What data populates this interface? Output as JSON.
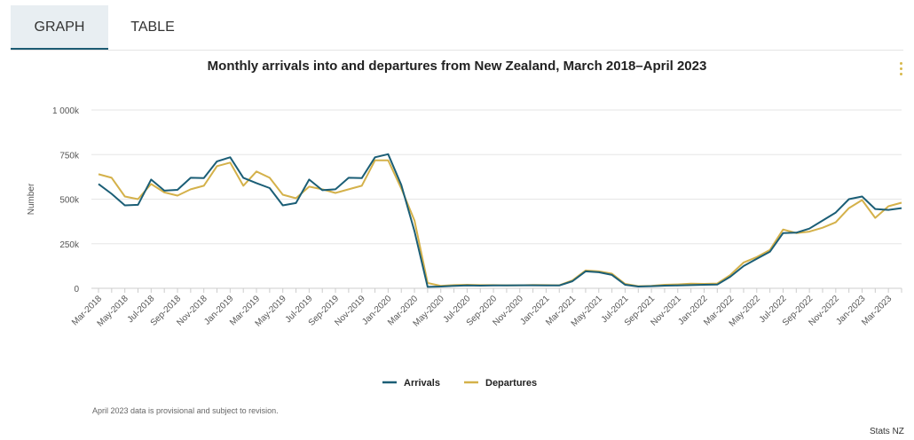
{
  "tabs": [
    {
      "label": "GRAPH",
      "active": true
    },
    {
      "label": "TABLE",
      "active": false
    }
  ],
  "note": "April 2023 data is provisional and subject to revision.",
  "credit": "Stats NZ",
  "colors": {
    "arrivals": "#1b5e76",
    "departures": "#d4b14a",
    "grid": "#e6e6e6",
    "axis": "#cccccc"
  },
  "chart_data": {
    "type": "line",
    "title": "Monthly arrivals into and departures from New Zealand, March 2018–April 2023",
    "xlabel": "",
    "ylabel": "Number",
    "ylim": [
      0,
      1000000
    ],
    "yticks": [
      0,
      250000,
      500000,
      750000,
      1000000
    ],
    "ytick_labels": [
      "0",
      "250k",
      "500k",
      "750k",
      "1 000k"
    ],
    "x": [
      "Mar-2018",
      "Apr-2018",
      "May-2018",
      "Jun-2018",
      "Jul-2018",
      "Aug-2018",
      "Sep-2018",
      "Oct-2018",
      "Nov-2018",
      "Dec-2018",
      "Jan-2019",
      "Feb-2019",
      "Mar-2019",
      "Apr-2019",
      "May-2019",
      "Jun-2019",
      "Jul-2019",
      "Aug-2019",
      "Sep-2019",
      "Oct-2019",
      "Nov-2019",
      "Dec-2019",
      "Jan-2020",
      "Feb-2020",
      "Mar-2020",
      "Apr-2020",
      "May-2020",
      "Jun-2020",
      "Jul-2020",
      "Aug-2020",
      "Sep-2020",
      "Oct-2020",
      "Nov-2020",
      "Dec-2020",
      "Jan-2021",
      "Feb-2021",
      "Mar-2021",
      "Apr-2021",
      "May-2021",
      "Jun-2021",
      "Jul-2021",
      "Aug-2021",
      "Sep-2021",
      "Oct-2021",
      "Nov-2021",
      "Dec-2021",
      "Jan-2022",
      "Feb-2022",
      "Mar-2022",
      "Apr-2022",
      "May-2022",
      "Jun-2022",
      "Jul-2022",
      "Aug-2022",
      "Sep-2022",
      "Oct-2022",
      "Nov-2022",
      "Dec-2022",
      "Jan-2023",
      "Feb-2023",
      "Mar-2023",
      "Apr-2023"
    ],
    "x_tick_labels": [
      "Mar-2018",
      "May-2018",
      "Jul-2018",
      "Sep-2018",
      "Nov-2018",
      "Jan-2019",
      "Mar-2019",
      "May-2019",
      "Jul-2019",
      "Sep-2019",
      "Nov-2019",
      "Jan-2020",
      "Mar-2020",
      "May-2020",
      "Jul-2020",
      "Sep-2020",
      "Nov-2020",
      "Jan-2021",
      "Mar-2021",
      "May-2021",
      "Jul-2021",
      "Sep-2021",
      "Nov-2021",
      "Jan-2022",
      "Mar-2022",
      "May-2022",
      "Jul-2022",
      "Sep-2022",
      "Nov-2022",
      "Jan-2023",
      "Mar-2023"
    ],
    "series": [
      {
        "name": "Arrivals",
        "values": [
          585000,
          530000,
          465000,
          468000,
          610000,
          548000,
          552000,
          620000,
          618000,
          712000,
          735000,
          620000,
          590000,
          562000,
          465000,
          478000,
          610000,
          550000,
          555000,
          620000,
          618000,
          735000,
          752000,
          580000,
          320000,
          8000,
          10000,
          14000,
          16000,
          15000,
          16000,
          16000,
          17000,
          17000,
          16000,
          16000,
          40000,
          95000,
          90000,
          75000,
          20000,
          10000,
          12000,
          15000,
          16000,
          18000,
          20000,
          21000,
          65000,
          125000,
          165000,
          205000,
          310000,
          312000,
          335000,
          380000,
          425000,
          500000,
          515000,
          445000,
          440000,
          450000
        ]
      },
      {
        "name": "Departures",
        "values": [
          640000,
          620000,
          515000,
          500000,
          585000,
          538000,
          520000,
          555000,
          575000,
          685000,
          705000,
          575000,
          655000,
          620000,
          525000,
          505000,
          570000,
          555000,
          535000,
          555000,
          575000,
          718000,
          718000,
          560000,
          380000,
          30000,
          14000,
          18000,
          20000,
          18000,
          18000,
          17000,
          17000,
          19000,
          18000,
          17000,
          45000,
          100000,
          95000,
          82000,
          25000,
          12000,
          14000,
          20000,
          22000,
          26000,
          25000,
          27000,
          75000,
          145000,
          175000,
          215000,
          330000,
          310000,
          318000,
          340000,
          370000,
          450000,
          495000,
          395000,
          460000,
          480000
        ]
      }
    ],
    "legend_position": "bottom-center",
    "grid": true
  }
}
